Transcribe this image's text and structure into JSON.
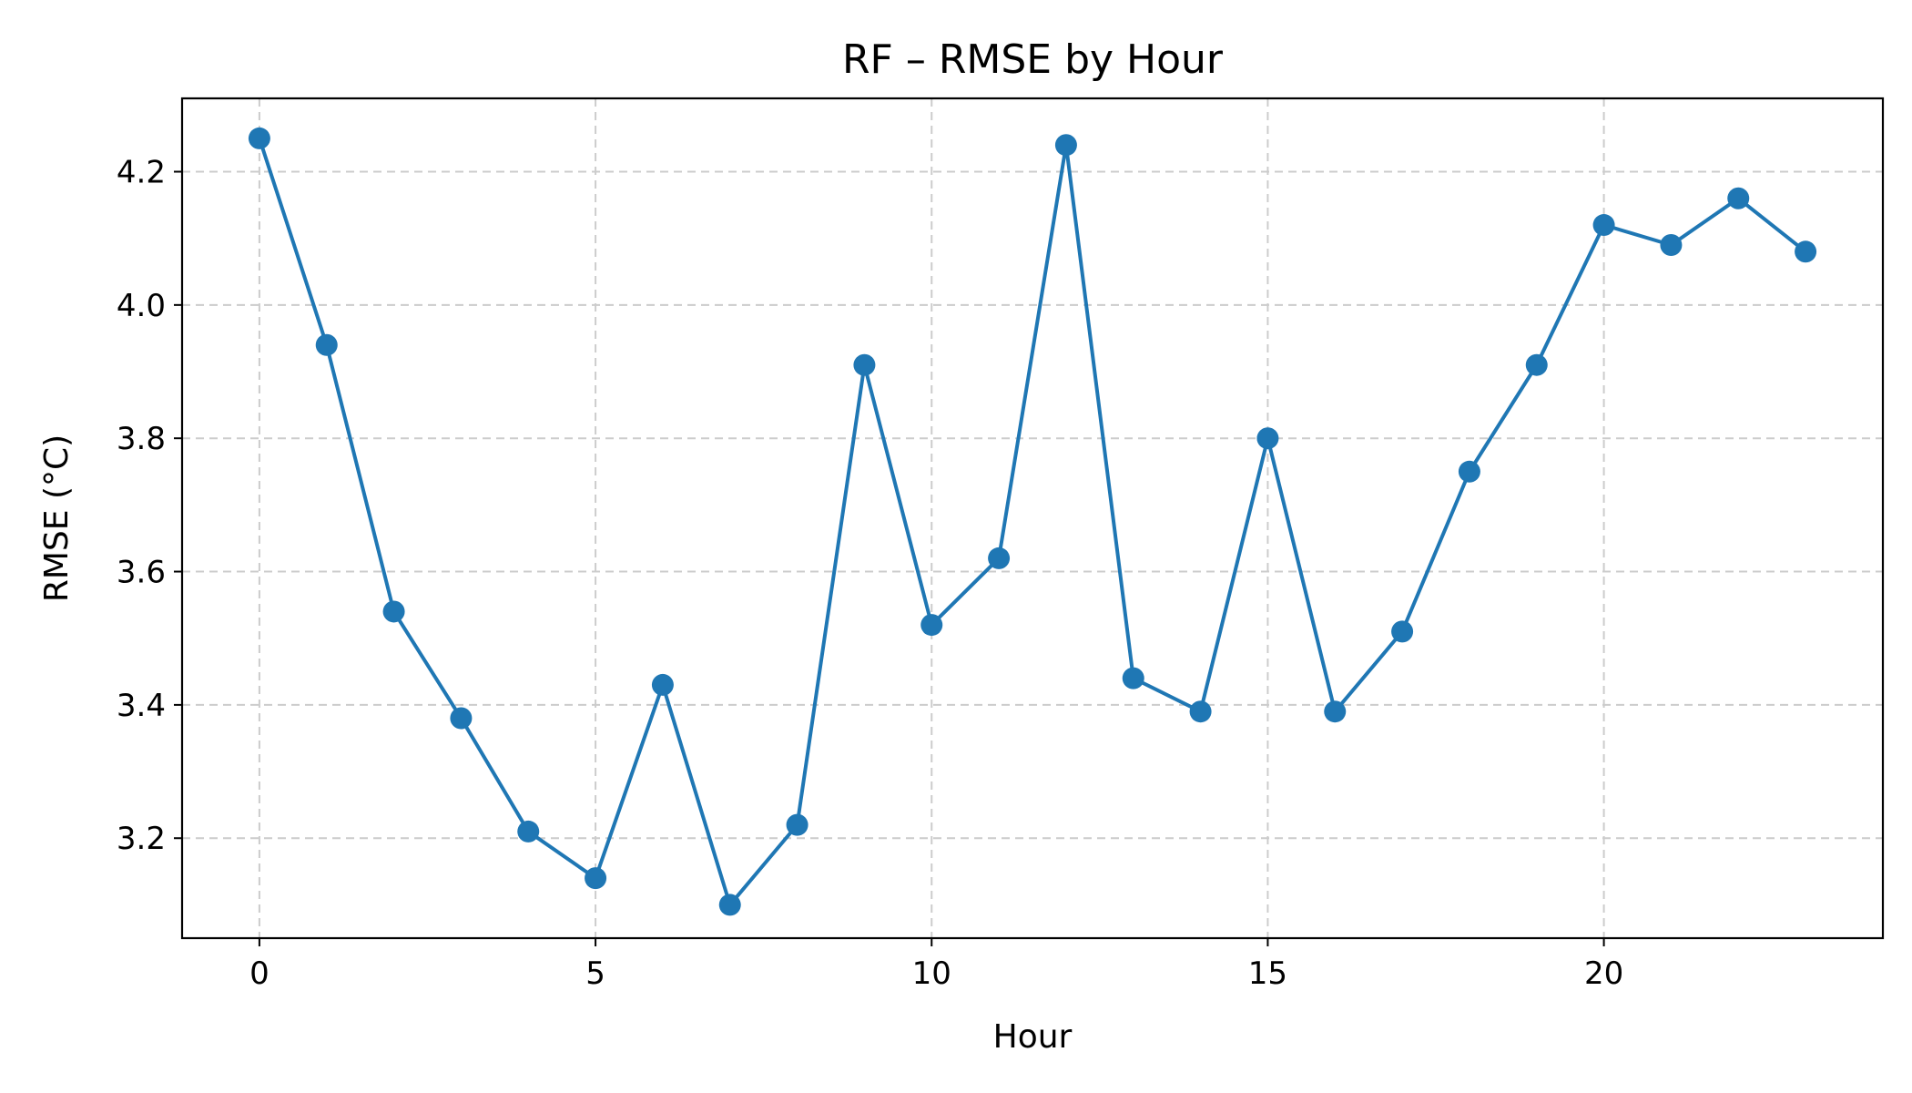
{
  "chart_data": {
    "type": "line",
    "title": "RF – RMSE by Hour",
    "xlabel": "Hour",
    "ylabel": "RMSE (°C)",
    "xlim": [
      -1.15,
      24.15
    ],
    "ylim": [
      3.05,
      4.31
    ],
    "xticks": [
      0,
      5,
      10,
      15,
      20
    ],
    "xtick_labels": [
      "0",
      "5",
      "10",
      "15",
      "20"
    ],
    "yticks": [
      3.2,
      3.4,
      3.6,
      3.8,
      4.0,
      4.2
    ],
    "ytick_labels": [
      "3.2",
      "3.4",
      "3.6",
      "3.8",
      "4.0",
      "4.2"
    ],
    "grid": true,
    "series": [
      {
        "name": "RMSE",
        "color": "#1f77b4",
        "marker": "circle",
        "x": [
          0,
          1,
          2,
          3,
          4,
          5,
          6,
          7,
          8,
          9,
          10,
          11,
          12,
          13,
          14,
          15,
          16,
          17,
          18,
          19,
          20,
          21,
          22,
          23
        ],
        "values": [
          4.25,
          3.94,
          3.54,
          3.38,
          3.21,
          3.14,
          3.43,
          3.1,
          3.22,
          3.91,
          3.52,
          3.62,
          4.24,
          3.44,
          3.39,
          3.8,
          3.39,
          3.51,
          3.75,
          3.91,
          4.12,
          4.09,
          4.16,
          4.08
        ]
      }
    ]
  }
}
